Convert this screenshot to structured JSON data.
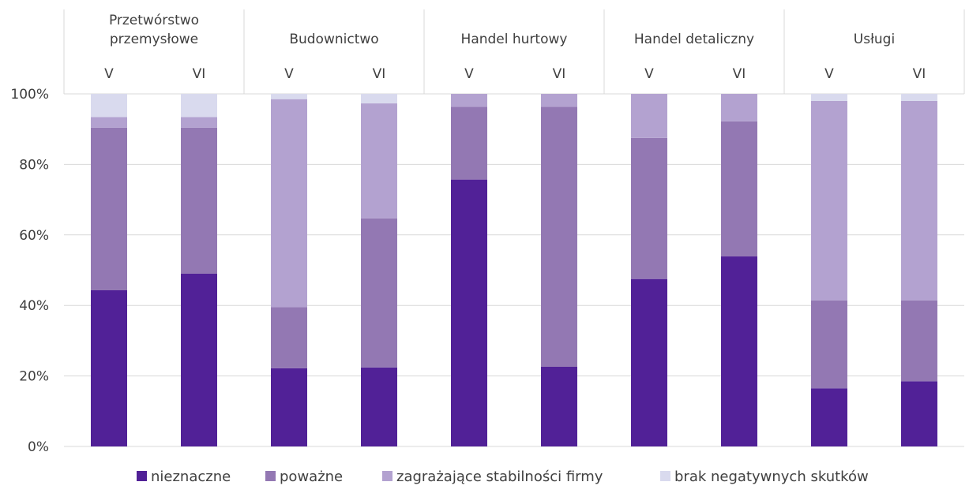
{
  "chart_data": {
    "type": "bar",
    "stacked": true,
    "groups": [
      {
        "label_lines": [
          "Przetwórstwo",
          "przemysłowe"
        ],
        "bars": [
          "V",
          "VI"
        ]
      },
      {
        "label_lines": [
          "Budownictwo"
        ],
        "bars": [
          "V",
          "VI"
        ]
      },
      {
        "label_lines": [
          "Handel hurtowy"
        ],
        "bars": [
          "V",
          "VI"
        ]
      },
      {
        "label_lines": [
          "Handel detaliczny"
        ],
        "bars": [
          "V",
          "VI"
        ]
      },
      {
        "label_lines": [
          "Usługi"
        ],
        "bars": [
          "V",
          "VI"
        ]
      }
    ],
    "categories": [
      "V",
      "VI",
      "V",
      "VI",
      "V",
      "VI",
      "V",
      "VI",
      "V",
      "VI"
    ],
    "series": [
      {
        "name": "nieznaczne",
        "color": "#512197",
        "values": [
          44.3,
          49.0,
          22.2,
          22.4,
          75.7,
          22.6,
          47.5,
          53.9,
          16.5,
          18.5
        ]
      },
      {
        "name": "poważne",
        "color": "#9378b3",
        "values": [
          46.1,
          41.4,
          17.3,
          42.3,
          20.6,
          73.7,
          40.0,
          38.3,
          24.9,
          22.9
        ]
      },
      {
        "name": "zagrażające stabilności firmy",
        "color": "#b3a2d0",
        "values": [
          3.0,
          3.0,
          59.0,
          32.6,
          3.7,
          3.7,
          12.5,
          7.8,
          56.6,
          56.6
        ]
      },
      {
        "name": "brak negatywnych skutków",
        "color": "#d9daee",
        "values": [
          6.6,
          6.6,
          1.5,
          2.7,
          0.0,
          0.0,
          0.0,
          0.0,
          2.0,
          2.0
        ]
      }
    ],
    "ylim": [
      0,
      100
    ],
    "yticks": [
      "0%",
      "20%",
      "40%",
      "60%",
      "80%",
      "100%"
    ],
    "ytick_values": [
      0,
      20,
      40,
      60,
      80,
      100
    ],
    "grid": true,
    "legend_position": "bottom",
    "colors": {
      "grid": "#d9d9d9",
      "text": "#404040"
    }
  }
}
